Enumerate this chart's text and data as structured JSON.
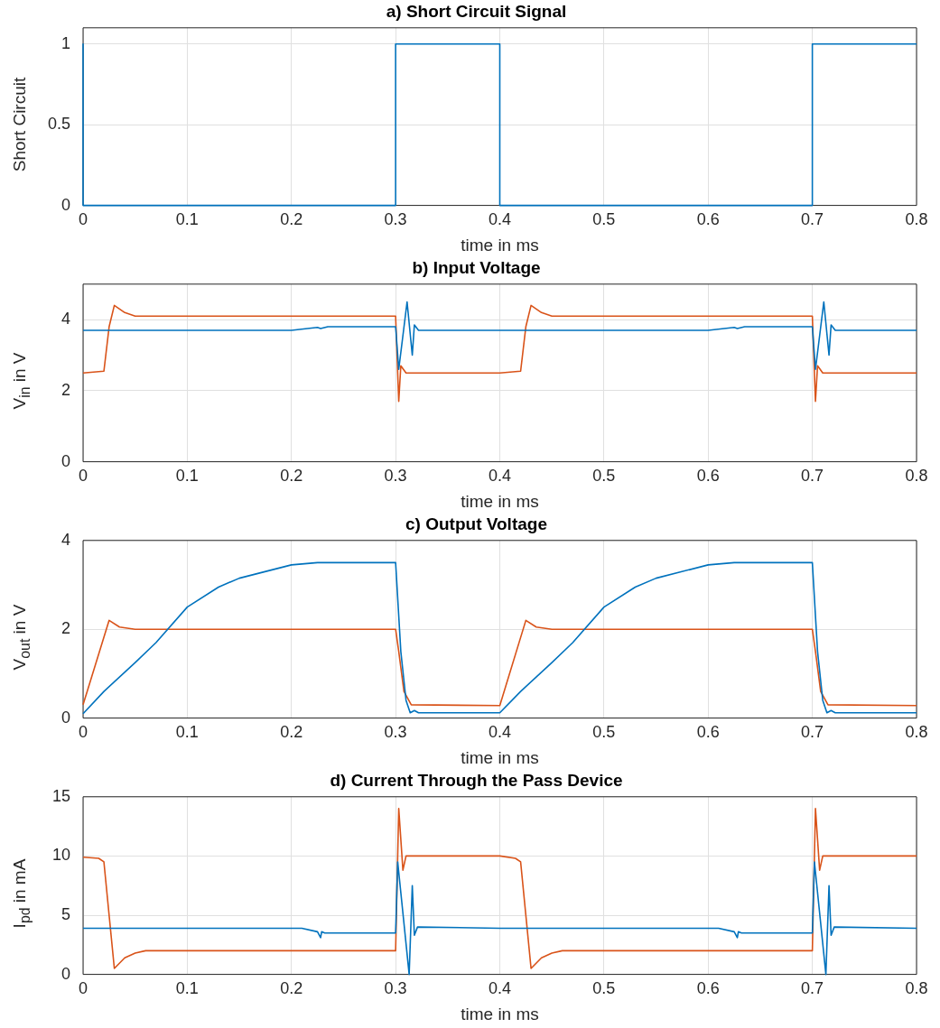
{
  "chart_data": [
    {
      "type": "line",
      "title": "a) Short Circuit Signal",
      "xlabel": "time in ms",
      "ylabel": "Short Circuit",
      "xlim": [
        0,
        0.8
      ],
      "xticks": [
        0,
        0.1,
        0.2,
        0.3,
        0.4,
        0.5,
        0.6,
        0.7,
        0.8
      ],
      "ylim": [
        0,
        1.1
      ],
      "yticks": [
        0,
        0.5,
        1
      ],
      "grid": true,
      "legend": false,
      "series": [
        {
          "color": "#0072bd",
          "x": [
            0,
            0,
            0.3,
            0.3,
            0.4,
            0.4,
            0.7,
            0.7,
            0.8
          ],
          "values": [
            1,
            0,
            0,
            1,
            1,
            0,
            0,
            1,
            1
          ]
        }
      ]
    },
    {
      "type": "line",
      "title": "b) Input Voltage",
      "xlabel": "time in ms",
      "ylabel": "V$_{in}$ in V",
      "xlim": [
        0,
        0.8
      ],
      "xticks": [
        0,
        0.1,
        0.2,
        0.3,
        0.4,
        0.5,
        0.6,
        0.7,
        0.8
      ],
      "ylim": [
        0,
        5
      ],
      "yticks": [
        0,
        2,
        4
      ],
      "grid": true,
      "legend": false,
      "series": [
        {
          "color": "#0072bd",
          "x": [
            0,
            0.2,
            0.225,
            0.228,
            0.235,
            0.3,
            0.303,
            0.311,
            0.316,
            0.318,
            0.322,
            0.4,
            0.6,
            0.625,
            0.628,
            0.635,
            0.7,
            0.703,
            0.711,
            0.716,
            0.718,
            0.722,
            0.8
          ],
          "values": [
            3.7,
            3.7,
            3.78,
            3.75,
            3.8,
            3.8,
            2.6,
            4.5,
            3.0,
            3.85,
            3.7,
            3.7,
            3.7,
            3.78,
            3.75,
            3.8,
            3.8,
            2.6,
            4.5,
            3.0,
            3.85,
            3.7,
            3.7
          ]
        },
        {
          "color": "#d95319",
          "x": [
            0,
            0.02,
            0.025,
            0.03,
            0.04,
            0.05,
            0.3,
            0.303,
            0.305,
            0.31,
            0.4,
            0.42,
            0.425,
            0.43,
            0.44,
            0.45,
            0.7,
            0.703,
            0.705,
            0.71,
            0.8
          ],
          "values": [
            2.5,
            2.55,
            3.8,
            4.4,
            4.2,
            4.1,
            4.1,
            1.7,
            2.7,
            2.5,
            2.5,
            2.55,
            3.8,
            4.4,
            4.2,
            4.1,
            4.1,
            1.7,
            2.7,
            2.5,
            2.5
          ]
        }
      ]
    },
    {
      "type": "line",
      "title": "c) Output Voltage",
      "xlabel": "time in ms",
      "ylabel": "V$_{out}$ in V",
      "xlim": [
        0,
        0.8
      ],
      "xticks": [
        0,
        0.1,
        0.2,
        0.3,
        0.4,
        0.5,
        0.6,
        0.7,
        0.8
      ],
      "ylim": [
        0,
        4
      ],
      "yticks": [
        0,
        2,
        4
      ],
      "grid": true,
      "legend": false,
      "series": [
        {
          "color": "#0072bd",
          "x": [
            0,
            0.02,
            0.05,
            0.07,
            0.1,
            0.13,
            0.15,
            0.2,
            0.225,
            0.3,
            0.305,
            0.31,
            0.314,
            0.318,
            0.322,
            0.4,
            0.42,
            0.45,
            0.47,
            0.5,
            0.53,
            0.55,
            0.6,
            0.625,
            0.7,
            0.705,
            0.71,
            0.714,
            0.718,
            0.722,
            0.8
          ],
          "values": [
            0.1,
            0.6,
            1.25,
            1.7,
            2.5,
            2.95,
            3.15,
            3.45,
            3.5,
            3.5,
            1.5,
            0.4,
            0.12,
            0.17,
            0.12,
            0.12,
            0.6,
            1.25,
            1.7,
            2.5,
            2.95,
            3.15,
            3.45,
            3.5,
            3.5,
            1.5,
            0.4,
            0.12,
            0.17,
            0.12,
            0.12
          ]
        },
        {
          "color": "#d95319",
          "x": [
            0,
            0.025,
            0.035,
            0.05,
            0.3,
            0.303,
            0.308,
            0.315,
            0.4,
            0.425,
            0.435,
            0.45,
            0.7,
            0.703,
            0.708,
            0.715,
            0.8
          ],
          "values": [
            0.3,
            2.2,
            2.05,
            2.0,
            2.0,
            1.5,
            0.6,
            0.3,
            0.28,
            2.2,
            2.05,
            2.0,
            2.0,
            1.5,
            0.6,
            0.3,
            0.28
          ]
        }
      ]
    },
    {
      "type": "line",
      "title": "d) Current Through the Pass Device",
      "xlabel": "time in ms",
      "ylabel": "I$_{pd}$ in mA",
      "xlim": [
        0,
        0.8
      ],
      "xticks": [
        0,
        0.1,
        0.2,
        0.3,
        0.4,
        0.5,
        0.6,
        0.7,
        0.8
      ],
      "ylim": [
        0,
        15
      ],
      "yticks": [
        0,
        5,
        10,
        15
      ],
      "grid": true,
      "legend": false,
      "series": [
        {
          "color": "#0072bd",
          "x": [
            0,
            0.21,
            0.225,
            0.228,
            0.229,
            0.232,
            0.3,
            0.302,
            0.313,
            0.316,
            0.318,
            0.321,
            0.4,
            0.61,
            0.625,
            0.628,
            0.629,
            0.632,
            0.7,
            0.702,
            0.713,
            0.716,
            0.718,
            0.721,
            0.8
          ],
          "values": [
            3.9,
            3.9,
            3.6,
            3.1,
            3.6,
            3.5,
            3.5,
            9.5,
            0,
            7.5,
            3.3,
            4.0,
            3.9,
            3.9,
            3.6,
            3.1,
            3.6,
            3.5,
            3.5,
            9.5,
            0,
            7.5,
            3.3,
            4.0,
            3.9
          ]
        },
        {
          "color": "#d95319",
          "x": [
            0,
            0.015,
            0.02,
            0.03,
            0.04,
            0.05,
            0.06,
            0.3,
            0.303,
            0.307,
            0.31,
            0.4,
            0.415,
            0.42,
            0.43,
            0.44,
            0.45,
            0.46,
            0.7,
            0.703,
            0.707,
            0.71,
            0.8
          ],
          "values": [
            9.9,
            9.8,
            9.5,
            0.5,
            1.4,
            1.8,
            2.0,
            2.0,
            14,
            8.8,
            10,
            10,
            9.8,
            9.5,
            0.5,
            1.4,
            1.8,
            2.0,
            2.0,
            14,
            8.8,
            10,
            10
          ]
        }
      ]
    }
  ]
}
